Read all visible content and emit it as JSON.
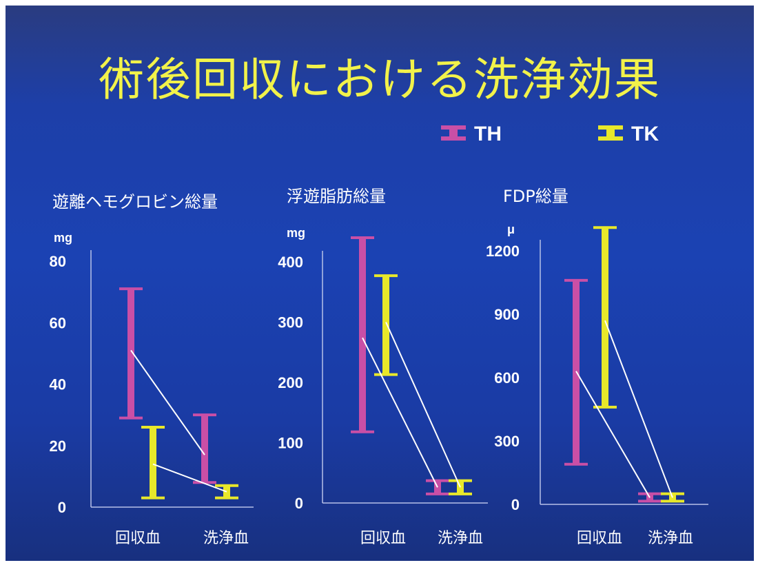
{
  "slide": {
    "title": "術後回収における洗浄効果"
  },
  "legend": [
    {
      "label": "TH",
      "color": "#c94fa6"
    },
    {
      "label": "TK",
      "color": "#e8e82a"
    }
  ],
  "chart_data": [
    {
      "type": "range",
      "title": "遊離ヘモグロビン総量",
      "unit": "mg",
      "categories": [
        "回収血",
        "洗浄血"
      ],
      "ylim": [
        0,
        80
      ],
      "yticks": [
        0,
        20,
        40,
        60,
        80
      ],
      "series": [
        {
          "name": "TH",
          "color": "#c94fa6",
          "low": [
            29,
            8
          ],
          "high": [
            71,
            30
          ],
          "mean": [
            51,
            17
          ]
        },
        {
          "name": "TK",
          "color": "#e8e82a",
          "low": [
            3,
            3
          ],
          "high": [
            26,
            7
          ],
          "mean": [
            14,
            5
          ]
        }
      ]
    },
    {
      "type": "range",
      "title": "浮遊脂肪総量",
      "unit": "mg",
      "categories": [
        "回収血",
        "洗浄血"
      ],
      "ylim": [
        0,
        400
      ],
      "yticks": [
        0,
        100,
        200,
        300,
        400
      ],
      "series": [
        {
          "name": "TH",
          "color": "#c94fa6",
          "low": [
            118,
            15
          ],
          "high": [
            440,
            37
          ],
          "mean": [
            274,
            26
          ]
        },
        {
          "name": "TK",
          "color": "#e8e82a",
          "low": [
            213,
            15
          ],
          "high": [
            377,
            37
          ],
          "mean": [
            300,
            26
          ]
        }
      ]
    },
    {
      "type": "range",
      "title": "FDP総量",
      "unit": "μ",
      "categories": [
        "回収血",
        "洗浄血"
      ],
      "ylim": [
        0,
        1200
      ],
      "yticks": [
        0,
        300,
        600,
        900,
        1200
      ],
      "series": [
        {
          "name": "TH",
          "color": "#c94fa6",
          "low": [
            190,
            15
          ],
          "high": [
            1060,
            50
          ],
          "mean": [
            630,
            32
          ]
        },
        {
          "name": "TK",
          "color": "#e8e82a",
          "low": [
            460,
            15
          ],
          "high": [
            1310,
            50
          ],
          "mean": [
            870,
            32
          ]
        }
      ]
    }
  ]
}
